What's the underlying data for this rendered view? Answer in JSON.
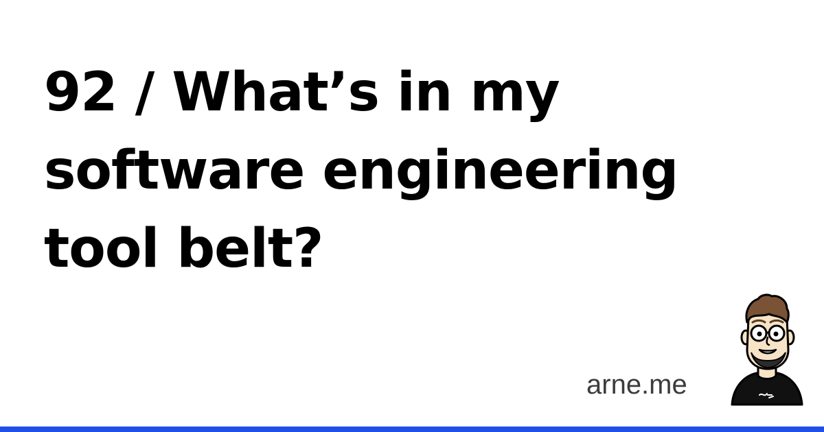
{
  "title": {
    "lines": [
      "92 / What’s in my",
      "software engineering",
      "tool belt?"
    ]
  },
  "site": {
    "label": "arne.me"
  },
  "avatar": {
    "icon": "cartoon-author-avatar-icon"
  },
  "colors": {
    "background": "#ffffff",
    "title": "#000000",
    "site": "#3c3c3c",
    "accent_bar": "#1f4fe6"
  }
}
